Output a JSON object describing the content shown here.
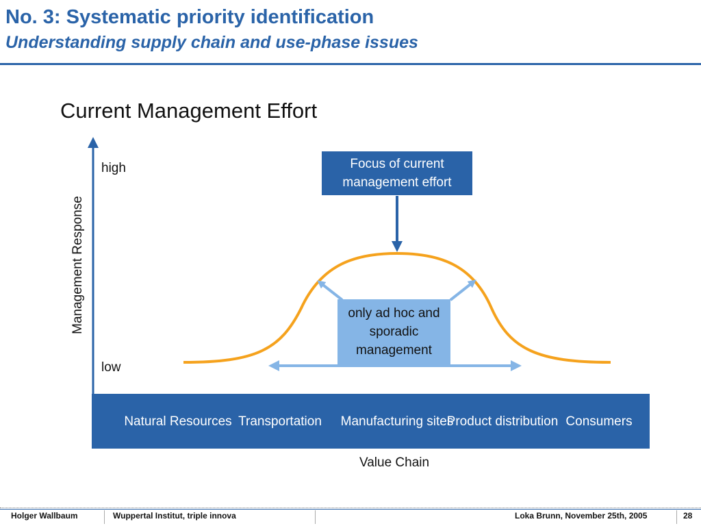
{
  "header": {
    "title": "No. 3: Systematic priority identification",
    "subtitle": "Understanding supply chain and use-phase issues"
  },
  "diagram": {
    "heading": "Current Management Effort",
    "y_axis_label": "Management Response",
    "high_label": "high",
    "low_label": "low",
    "x_axis_label": "Value Chain",
    "focus_box": "Focus of current management effort",
    "adhoc_box": "only ad hoc and sporadic management",
    "stages": [
      "Natural Resources",
      "Transportation",
      "Manufacturing sites",
      "Product distribution",
      "Consumers"
    ],
    "colors": {
      "primary_blue": "#2a63a8",
      "light_blue": "#85b5e6",
      "curve_orange": "#f5a21d"
    }
  },
  "footer": {
    "author": "Holger Wallbaum",
    "organization": "Wuppertal Institut, triple innova",
    "presenter_date": "Loka Brunn, November 25th, 2005",
    "page_number": "28"
  }
}
